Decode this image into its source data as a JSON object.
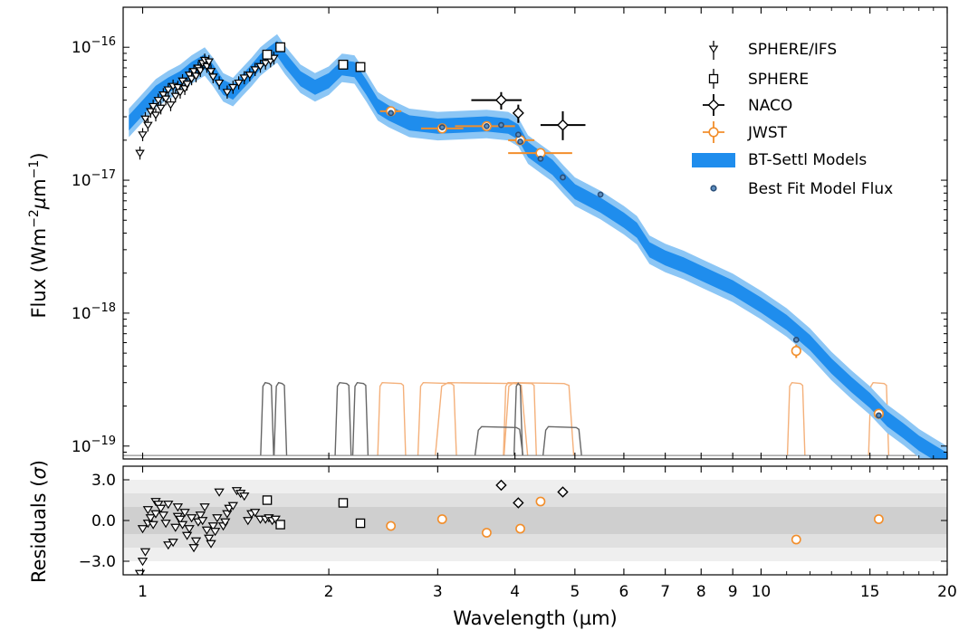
{
  "chart_data": [
    {
      "type": "scatter",
      "panel": "sed",
      "xscale": "log",
      "yscale": "log",
      "xlim": [
        0.93,
        20
      ],
      "ylim": [
        8e-20,
        2e-16
      ],
      "xlabel": "Wavelength (µm)",
      "ylabel_prefix": "Flux (Wm",
      "ylabel_exp1": "−2",
      "ylabel_mu": "µ",
      "ylabel_m": "m",
      "ylabel_exp2": "−1",
      "ylabel_suffix": ")",
      "y_ticks": [
        {
          "value": 1e-19,
          "base": "10",
          "exp": "−19"
        },
        {
          "value": 1e-18,
          "base": "10",
          "exp": "−18"
        },
        {
          "value": 1e-17,
          "base": "10",
          "exp": "−17"
        },
        {
          "value": 1e-16,
          "base": "10",
          "exp": "−16"
        }
      ],
      "legend_position": "upper-right",
      "legend": [
        {
          "key": "sphere_ifs",
          "label": "SPHERE/IFS"
        },
        {
          "key": "sphere",
          "label": "SPHERE"
        },
        {
          "key": "naco",
          "label": "NACO"
        },
        {
          "key": "jwst",
          "label": "JWST"
        },
        {
          "key": "model",
          "label": "BT-Settl Models"
        },
        {
          "key": "bestfit",
          "label": "Best Fit Model Flux"
        }
      ],
      "colors": {
        "model": "#1f8ded",
        "model_light": "#8cc6f5",
        "jwst": "#f28e2b",
        "filter_gray": "#666666",
        "filter_orange": "#f4b07a",
        "bestfit_fill": "#5e8fbf"
      },
      "model_curve": [
        [
          0.95,
          2.7e-17
        ],
        [
          1.0,
          3.5e-17
        ],
        [
          1.05,
          4.5e-17
        ],
        [
          1.1,
          5.2e-17
        ],
        [
          1.15,
          5.8e-17
        ],
        [
          1.2,
          6.8e-17
        ],
        [
          1.26,
          7.8e-17
        ],
        [
          1.3,
          6.5e-17
        ],
        [
          1.35,
          5e-17
        ],
        [
          1.4,
          4.6e-17
        ],
        [
          1.45,
          5.5e-17
        ],
        [
          1.5,
          6.5e-17
        ],
        [
          1.55,
          7.8e-17
        ],
        [
          1.6,
          8.8e-17
        ],
        [
          1.65,
          9.8e-17
        ],
        [
          1.7,
          8e-17
        ],
        [
          1.8,
          5.8e-17
        ],
        [
          1.9,
          5e-17
        ],
        [
          2.0,
          5.6e-17
        ],
        [
          2.1,
          7e-17
        ],
        [
          2.2,
          6.8e-17
        ],
        [
          2.3,
          5e-17
        ],
        [
          2.4,
          3.6e-17
        ],
        [
          2.5,
          3.2e-17
        ],
        [
          2.7,
          2.7e-17
        ],
        [
          3.0,
          2.55e-17
        ],
        [
          3.3,
          2.6e-17
        ],
        [
          3.6,
          2.65e-17
        ],
        [
          3.9,
          2.55e-17
        ],
        [
          4.05,
          2.3e-17
        ],
        [
          4.2,
          1.7e-17
        ],
        [
          4.4,
          1.45e-17
        ],
        [
          4.6,
          1.25e-17
        ],
        [
          4.8,
          1e-17
        ],
        [
          5.0,
          8.2e-18
        ],
        [
          5.5,
          6.5e-18
        ],
        [
          6.0,
          5e-18
        ],
        [
          6.3,
          4.2e-18
        ],
        [
          6.6,
          3e-18
        ],
        [
          7.0,
          2.6e-18
        ],
        [
          7.5,
          2.3e-18
        ],
        [
          8.0,
          2e-18
        ],
        [
          9.0,
          1.55e-18
        ],
        [
          10.0,
          1.15e-18
        ],
        [
          11.0,
          8.5e-19
        ],
        [
          12.0,
          6e-19
        ],
        [
          13.0,
          4e-19
        ],
        [
          14.0,
          2.9e-19
        ],
        [
          15.0,
          2.2e-19
        ],
        [
          16.0,
          1.6e-19
        ],
        [
          17.0,
          1.3e-19
        ],
        [
          18.0,
          1.05e-19
        ],
        [
          19.0,
          9e-20
        ],
        [
          20.0,
          7.8e-20
        ]
      ],
      "sphere_ifs": [
        [
          0.99,
          1.6e-17
        ],
        [
          1.0,
          2.2e-17
        ],
        [
          1.01,
          2.9e-17
        ],
        [
          1.02,
          2.6e-17
        ],
        [
          1.03,
          3.3e-17
        ],
        [
          1.04,
          3.6e-17
        ],
        [
          1.05,
          3.1e-17
        ],
        [
          1.06,
          4e-17
        ],
        [
          1.07,
          3.5e-17
        ],
        [
          1.08,
          4.4e-17
        ],
        [
          1.09,
          4.1e-17
        ],
        [
          1.1,
          4.8e-17
        ],
        [
          1.11,
          3.7e-17
        ],
        [
          1.12,
          5.1e-17
        ],
        [
          1.13,
          4.3e-17
        ],
        [
          1.14,
          5e-17
        ],
        [
          1.15,
          4.6e-17
        ],
        [
          1.16,
          5.6e-17
        ],
        [
          1.17,
          4.9e-17
        ],
        [
          1.18,
          5.3e-17
        ],
        [
          1.19,
          6.2e-17
        ],
        [
          1.2,
          5.8e-17
        ],
        [
          1.21,
          6.6e-17
        ],
        [
          1.22,
          6.1e-17
        ],
        [
          1.23,
          7e-17
        ],
        [
          1.24,
          6.7e-17
        ],
        [
          1.25,
          7.6e-17
        ],
        [
          1.26,
          8e-17
        ],
        [
          1.27,
          7.2e-17
        ],
        [
          1.28,
          7.8e-17
        ],
        [
          1.29,
          6.6e-17
        ],
        [
          1.3,
          6e-17
        ],
        [
          1.33,
          5.4e-17
        ],
        [
          1.37,
          4.6e-17
        ],
        [
          1.4,
          5e-17
        ],
        [
          1.43,
          5.4e-17
        ],
        [
          1.46,
          5.9e-17
        ],
        [
          1.49,
          6.2e-17
        ],
        [
          1.52,
          6.8e-17
        ],
        [
          1.55,
          7.2e-17
        ],
        [
          1.58,
          7.6e-17
        ],
        [
          1.61,
          7.9e-17
        ],
        [
          1.63,
          8.3e-17
        ]
      ],
      "sphere": [
        [
          1.59,
          8.8e-17
        ],
        [
          1.67,
          1e-16
        ],
        [
          2.11,
          7.4e-17
        ],
        [
          2.25,
          7.1e-17
        ]
      ],
      "naco": [
        {
          "x": 3.8,
          "y": 4e-17,
          "xerr": [
            3.4,
            4.1
          ],
          "yerr": [
            3.4e-17,
            4.6e-17
          ]
        },
        {
          "x": 4.05,
          "y": 3.2e-17,
          "xerr": [
            4.0,
            4.1
          ],
          "yerr": [
            2.7e-17,
            3.7e-17
          ]
        },
        {
          "x": 4.78,
          "y": 2.6e-17,
          "xerr": [
            4.4,
            5.2
          ],
          "yerr": [
            2e-17,
            3.3e-17
          ]
        }
      ],
      "jwst": [
        {
          "x": 2.52,
          "y": 3.3e-17,
          "xerr": [
            2.42,
            2.62
          ],
          "yerr": [
            3.1e-17,
            3.5e-17
          ]
        },
        {
          "x": 3.05,
          "y": 2.45e-17,
          "xerr": [
            2.82,
            3.3
          ],
          "yerr": [
            2.3e-17,
            2.6e-17
          ]
        },
        {
          "x": 3.6,
          "y": 2.55e-17,
          "xerr": [
            3.2,
            4.0
          ],
          "yerr": [
            2.4e-17,
            2.7e-17
          ]
        },
        {
          "x": 4.08,
          "y": 2e-17,
          "xerr": [
            3.9,
            4.3
          ],
          "yerr": [
            1.85e-17,
            2.15e-17
          ]
        },
        {
          "x": 4.4,
          "y": 1.6e-17,
          "xerr": [
            3.9,
            4.95
          ],
          "yerr": [
            1.5e-17,
            1.7e-17
          ]
        },
        {
          "x": 11.4,
          "y": 5.2e-19,
          "xerr": [
            11.2,
            11.6
          ],
          "yerr": [
            4.6e-19,
            5.8e-19
          ]
        },
        {
          "x": 15.5,
          "y": 1.75e-19,
          "xerr": [
            15.3,
            15.7
          ],
          "yerr": [
            1.6e-19,
            1.9e-19
          ]
        }
      ],
      "bestfit": [
        [
          2.52,
          3.2e-17
        ],
        [
          3.05,
          2.5e-17
        ],
        [
          3.6,
          2.55e-17
        ],
        [
          3.8,
          2.6e-17
        ],
        [
          4.05,
          2.2e-17
        ],
        [
          4.08,
          1.95e-17
        ],
        [
          4.4,
          1.45e-17
        ],
        [
          4.78,
          1.05e-17
        ],
        [
          5.5,
          7.8e-18
        ],
        [
          11.4,
          6.3e-19
        ],
        [
          15.5,
          1.7e-19
        ]
      ],
      "filters": [
        {
          "color": "gray",
          "center": 1.59,
          "width": 0.05
        },
        {
          "color": "gray",
          "center": 1.67,
          "width": 0.05
        },
        {
          "color": "gray",
          "center": 2.11,
          "width": 0.09
        },
        {
          "color": "gray",
          "center": 2.25,
          "width": 0.09
        },
        {
          "color": "orange",
          "center": 2.53,
          "width": 0.22
        },
        {
          "color": "orange",
          "center": 3.0,
          "width": 0.37
        },
        {
          "color": "orange",
          "center": 3.57,
          "width": 1.05
        },
        {
          "color": "orange",
          "center": 4.08,
          "width": 0.43
        },
        {
          "color": "orange",
          "center": 4.4,
          "width": 0.98
        },
        {
          "color": "gray",
          "center": 3.78,
          "width": 0.58
        },
        {
          "color": "gray",
          "center": 4.05,
          "width": 0.06
        },
        {
          "color": "gray",
          "center": 4.78,
          "width": 0.59
        },
        {
          "color": "orange",
          "center": 11.4,
          "width": 0.55
        },
        {
          "color": "orange",
          "center": 15.5,
          "width": 0.9
        }
      ]
    },
    {
      "type": "scatter",
      "panel": "residuals",
      "xscale": "log",
      "xlim": [
        0.93,
        20
      ],
      "ylim": [
        -4,
        4
      ],
      "ylabel_prefix": "Residuals (",
      "ylabel_sigma": "σ",
      "ylabel_suffix": ")",
      "y_ticks": [
        {
          "value": -3,
          "label": "−3.0"
        },
        {
          "value": 0,
          "label": "0.0"
        },
        {
          "value": 3,
          "label": "3.0"
        }
      ],
      "x_ticks": [
        {
          "value": 1,
          "label": "1"
        },
        {
          "value": 2,
          "label": "2"
        },
        {
          "value": 3,
          "label": "3"
        },
        {
          "value": 4,
          "label": "4"
        },
        {
          "value": 5,
          "label": "5"
        },
        {
          "value": 6,
          "label": "6"
        },
        {
          "value": 7,
          "label": "7"
        },
        {
          "value": 8,
          "label": "8"
        },
        {
          "value": 9,
          "label": "9"
        },
        {
          "value": 10,
          "label": "10"
        },
        {
          "value": 15,
          "label": "15"
        },
        {
          "value": 20,
          "label": "20"
        }
      ],
      "bands": [
        1,
        2,
        3
      ],
      "sphere_ifs": [
        [
          0.99,
          -3.9
        ],
        [
          1.0,
          -3.0
        ],
        [
          1.01,
          -2.3
        ],
        [
          1.0,
          -0.6
        ],
        [
          1.02,
          -0.2
        ],
        [
          1.02,
          0.8
        ],
        [
          1.03,
          0.2
        ],
        [
          1.04,
          -0.3
        ],
        [
          1.05,
          0.5
        ],
        [
          1.05,
          1.4
        ],
        [
          1.06,
          1.2
        ],
        [
          1.07,
          0.9
        ],
        [
          1.08,
          0.4
        ],
        [
          1.09,
          -0.2
        ],
        [
          1.1,
          1.2
        ],
        [
          1.1,
          -1.8
        ],
        [
          1.12,
          -1.6
        ],
        [
          1.13,
          -0.5
        ],
        [
          1.14,
          0.3
        ],
        [
          1.14,
          1.0
        ],
        [
          1.15,
          0.1
        ],
        [
          1.16,
          -0.3
        ],
        [
          1.17,
          0.6
        ],
        [
          1.18,
          -1.1
        ],
        [
          1.19,
          -0.6
        ],
        [
          1.2,
          0.2
        ],
        [
          1.21,
          -2.0
        ],
        [
          1.22,
          -1.5
        ],
        [
          1.23,
          -0.1
        ],
        [
          1.24,
          0.4
        ],
        [
          1.25,
          0.0
        ],
        [
          1.26,
          1.0
        ],
        [
          1.27,
          -0.7
        ],
        [
          1.28,
          -1.3
        ],
        [
          1.29,
          -1.7
        ],
        [
          1.3,
          -0.4
        ],
        [
          1.31,
          -0.8
        ],
        [
          1.32,
          0.2
        ],
        [
          1.33,
          2.1
        ],
        [
          1.35,
          -0.4
        ],
        [
          1.36,
          -0.1
        ],
        [
          1.37,
          0.5
        ],
        [
          1.38,
          0.9
        ],
        [
          1.4,
          1.1
        ],
        [
          1.42,
          2.2
        ],
        [
          1.44,
          2.0
        ],
        [
          1.46,
          1.8
        ],
        [
          1.48,
          0.0
        ],
        [
          1.5,
          0.5
        ],
        [
          1.52,
          0.6
        ],
        [
          1.55,
          0.1
        ],
        [
          1.58,
          0.1
        ],
        [
          1.6,
          0.2
        ],
        [
          1.62,
          0.0
        ],
        [
          1.64,
          0.1
        ]
      ],
      "sphere": [
        [
          1.59,
          1.5
        ],
        [
          1.67,
          -0.3
        ],
        [
          2.11,
          1.3
        ],
        [
          2.25,
          -0.2
        ]
      ],
      "naco": [
        [
          3.8,
          2.6
        ],
        [
          4.05,
          1.3
        ],
        [
          4.78,
          2.1
        ]
      ],
      "jwst": [
        [
          2.52,
          -0.4
        ],
        [
          3.05,
          0.1
        ],
        [
          3.6,
          -0.9
        ],
        [
          4.08,
          -0.6
        ],
        [
          4.4,
          1.4
        ],
        [
          11.4,
          -1.4
        ],
        [
          15.5,
          0.1
        ]
      ]
    }
  ]
}
